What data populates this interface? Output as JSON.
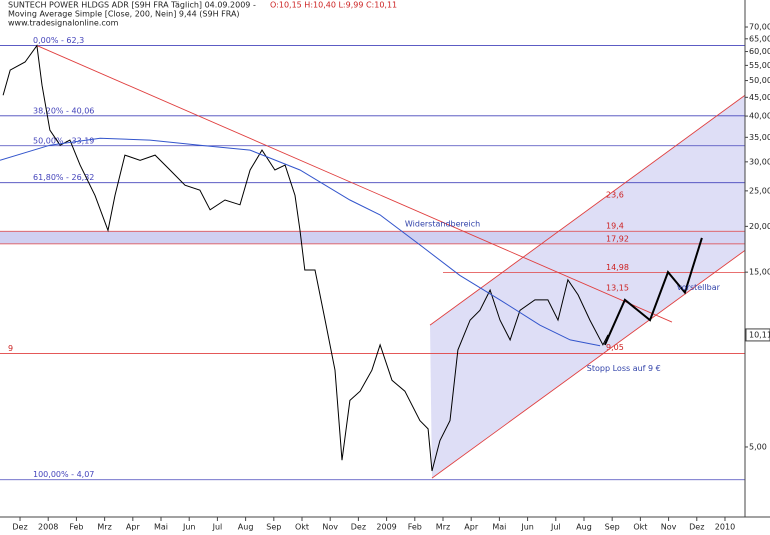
{
  "chart_data": {
    "type": "line",
    "title": "SUNTECH POWER HLDGS  ADR [S9H FRA  Täglich] 04.09.2009 -",
    "ohlc": "O:10,15 H:10,40 L:9,99 C:10,11",
    "source": "www.tradesignalonline.com",
    "log_scale": true,
    "xlim": [
      -0.71,
      25.71
    ],
    "ylim": [
      3.22,
      77.9
    ],
    "xticks": [
      {
        "value": 0,
        "label": "Dez"
      },
      {
        "value": 1,
        "label": "2008"
      },
      {
        "value": 2,
        "label": "Feb"
      },
      {
        "value": 3,
        "label": "Mrz"
      },
      {
        "value": 4,
        "label": "Apr"
      },
      {
        "value": 5,
        "label": "Mai"
      },
      {
        "value": 6,
        "label": "Jun"
      },
      {
        "value": 7,
        "label": "Jul"
      },
      {
        "value": 8,
        "label": "Aug"
      },
      {
        "value": 9,
        "label": "Sep"
      },
      {
        "value": 10,
        "label": "Okt"
      },
      {
        "value": 11,
        "label": "Nov"
      },
      {
        "value": 12,
        "label": "Dez"
      },
      {
        "value": 13,
        "label": "2009"
      },
      {
        "value": 14,
        "label": "Feb"
      },
      {
        "value": 15,
        "label": "Mrz"
      },
      {
        "value": 16,
        "label": "Apr"
      },
      {
        "value": 17,
        "label": "Mai"
      },
      {
        "value": 18,
        "label": "Jun"
      },
      {
        "value": 19,
        "label": "Jul"
      },
      {
        "value": 20,
        "label": "Aug"
      },
      {
        "value": 21,
        "label": "Sep"
      },
      {
        "value": 22,
        "label": "Okt"
      },
      {
        "value": 23,
        "label": "Nov"
      },
      {
        "value": 24,
        "label": "Dez"
      },
      {
        "value": 25,
        "label": "2010"
      }
    ],
    "yticks": [
      {
        "value": 70,
        "label": "70,00"
      },
      {
        "value": 65,
        "label": "65,00"
      },
      {
        "value": 60,
        "label": "60,00"
      },
      {
        "value": 55,
        "label": "55,00"
      },
      {
        "value": 50,
        "label": "50,00"
      },
      {
        "value": 45,
        "label": "45,00"
      },
      {
        "value": 40,
        "label": "40,00"
      },
      {
        "value": 35,
        "label": "35,00"
      },
      {
        "value": 30,
        "label": "30,00"
      },
      {
        "value": 25,
        "label": "25,00"
      },
      {
        "value": 20,
        "label": "20,00"
      },
      {
        "value": 15,
        "label": "15,00"
      },
      {
        "value": 5,
        "label": "5,00"
      }
    ],
    "last_price": {
      "value": 10.11,
      "label": "10,11"
    },
    "series": [
      {
        "name": "SUNTECH POWER HLDGS  ADR [S9H FRA  Täglich] 04.09.2009 -",
        "color": "#000000",
        "x": [
          -0.6,
          -0.35,
          0.18,
          0.6,
          0.78,
          1.06,
          1.42,
          1.77,
          2.13,
          2.66,
          3.12,
          3.37,
          3.72,
          4.26,
          4.79,
          5.32,
          5.85,
          6.38,
          6.74,
          7.27,
          7.8,
          8.16,
          8.58,
          9.04,
          9.4,
          9.75,
          9.93,
          10.1,
          10.46,
          10.82,
          11.17,
          11.42,
          11.7,
          12.06,
          12.48,
          12.77,
          13.19,
          13.65,
          14.18,
          14.47,
          14.61,
          14.89,
          15.25,
          15.53,
          15.96,
          16.31,
          16.67,
          17.02,
          17.38,
          17.73,
          18.26,
          18.72,
          19.08,
          19.43,
          19.79,
          20.21,
          20.67,
          20.85
        ],
        "values": [
          45.6,
          53.4,
          56.2,
          62.3,
          48.6,
          36.6,
          33.3,
          34.4,
          29.4,
          24.3,
          19.5,
          24.3,
          31.3,
          30.3,
          31.3,
          28.5,
          25.9,
          25.1,
          22.2,
          23.6,
          22.9,
          28.5,
          32.3,
          28.5,
          29.4,
          24.3,
          19.5,
          15.2,
          15.2,
          11.1,
          8.1,
          4.6,
          6.7,
          7.1,
          8.1,
          9.5,
          7.6,
          7.1,
          5.9,
          5.6,
          4.3,
          5.2,
          5.9,
          9.2,
          11.1,
          11.8,
          13.4,
          11.1,
          9.8,
          11.8,
          12.6,
          12.6,
          11.1,
          14.3,
          13.0,
          11.1,
          9.5,
          10.11
        ]
      },
      {
        "name": "Moving Average Simple [Close, 200, Nein] 9,44 (S9H FRA)",
        "color": "#3355cc",
        "x": [
          -0.71,
          1.06,
          2.84,
          4.61,
          6.38,
          8.16,
          9.93,
          11.7,
          12.77,
          14.18,
          15.6,
          17.02,
          18.44,
          19.51,
          20.57
        ],
        "values": [
          30.3,
          33.3,
          34.8,
          34.4,
          33.3,
          32.3,
          28.5,
          23.6,
          21.5,
          17.8,
          14.7,
          12.6,
          10.75,
          9.8,
          9.44
        ]
      },
      {
        "name": "vorstellbar",
        "color": "#000000",
        "width": 2,
        "x": [
          20.74,
          21.45,
          22.34,
          22.98,
          23.58,
          24.18
        ],
        "values": [
          9.5,
          12.6,
          11.1,
          15.0,
          13.2,
          18.6
        ]
      }
    ],
    "trendlines": [
      {
        "color": "#e04040",
        "x": [
          0.6,
          23.12
        ],
        "values": [
          62.3,
          10.96
        ]
      },
      {
        "color": "#e04040",
        "x": [
          14.61,
          25.71
        ],
        "values": [
          4.11,
          17.2
        ]
      },
      {
        "color": "#e04040",
        "x": [
          14.54,
          25.71
        ],
        "values": [
          10.75,
          45.6
        ]
      }
    ],
    "channel_fill": "#d6d6f4",
    "levels": [
      {
        "value": 62.3,
        "label": "0,00% - 62,3",
        "color": "#4444bb",
        "line": "full",
        "side": "left"
      },
      {
        "value": 40.06,
        "label": "38,20% - 40,06",
        "color": "#4444bb",
        "line": "full",
        "side": "left"
      },
      {
        "value": 33.19,
        "label": "50,00% - 33,19",
        "color": "#4444bb",
        "line": "full",
        "side": "left"
      },
      {
        "value": 26.32,
        "label": "61,80% - 26,32",
        "color": "#4444bb",
        "line": "full",
        "side": "left"
      },
      {
        "value": 4.07,
        "label": "100,00% - 4,07",
        "color": "#4444bb",
        "line": "full",
        "side": "left"
      },
      {
        "value": 19.4,
        "label": "19,4",
        "color": "#e04040",
        "line": "full",
        "side": "right",
        "band": true
      },
      {
        "value": 17.92,
        "label": "17,92",
        "color": "#e04040",
        "line": "full",
        "side": "right",
        "band": true
      },
      {
        "value": 23.6,
        "label": "23,6",
        "color": "#e04040",
        "line": "none",
        "side": "right"
      },
      {
        "value": 14.98,
        "label": "14,98",
        "color": "#e04040",
        "line": "right",
        "side": "right"
      },
      {
        "value": 13.15,
        "label": "13,15",
        "color": "#e04040",
        "line": "none",
        "side": "right"
      },
      {
        "value": 9.05,
        "label": "9,05",
        "color": "#e04040",
        "line": "none",
        "side": "right"
      },
      {
        "value": 9,
        "label": "9",
        "color": "#e04040",
        "line": "full",
        "side": "far-left"
      }
    ],
    "band_color": "#d0d0f2",
    "annotations": [
      {
        "text": "Widerstandbereich",
        "x": 13.65,
        "y": 20.3,
        "color": "#3344aa"
      },
      {
        "text": "Stopp Loss auf 9 €",
        "x": 20.1,
        "y": 8.2,
        "color": "#3344aa"
      },
      {
        "text": "vorstellbar",
        "x": 23.3,
        "y": 13.6,
        "color": "#3344aa"
      }
    ]
  }
}
